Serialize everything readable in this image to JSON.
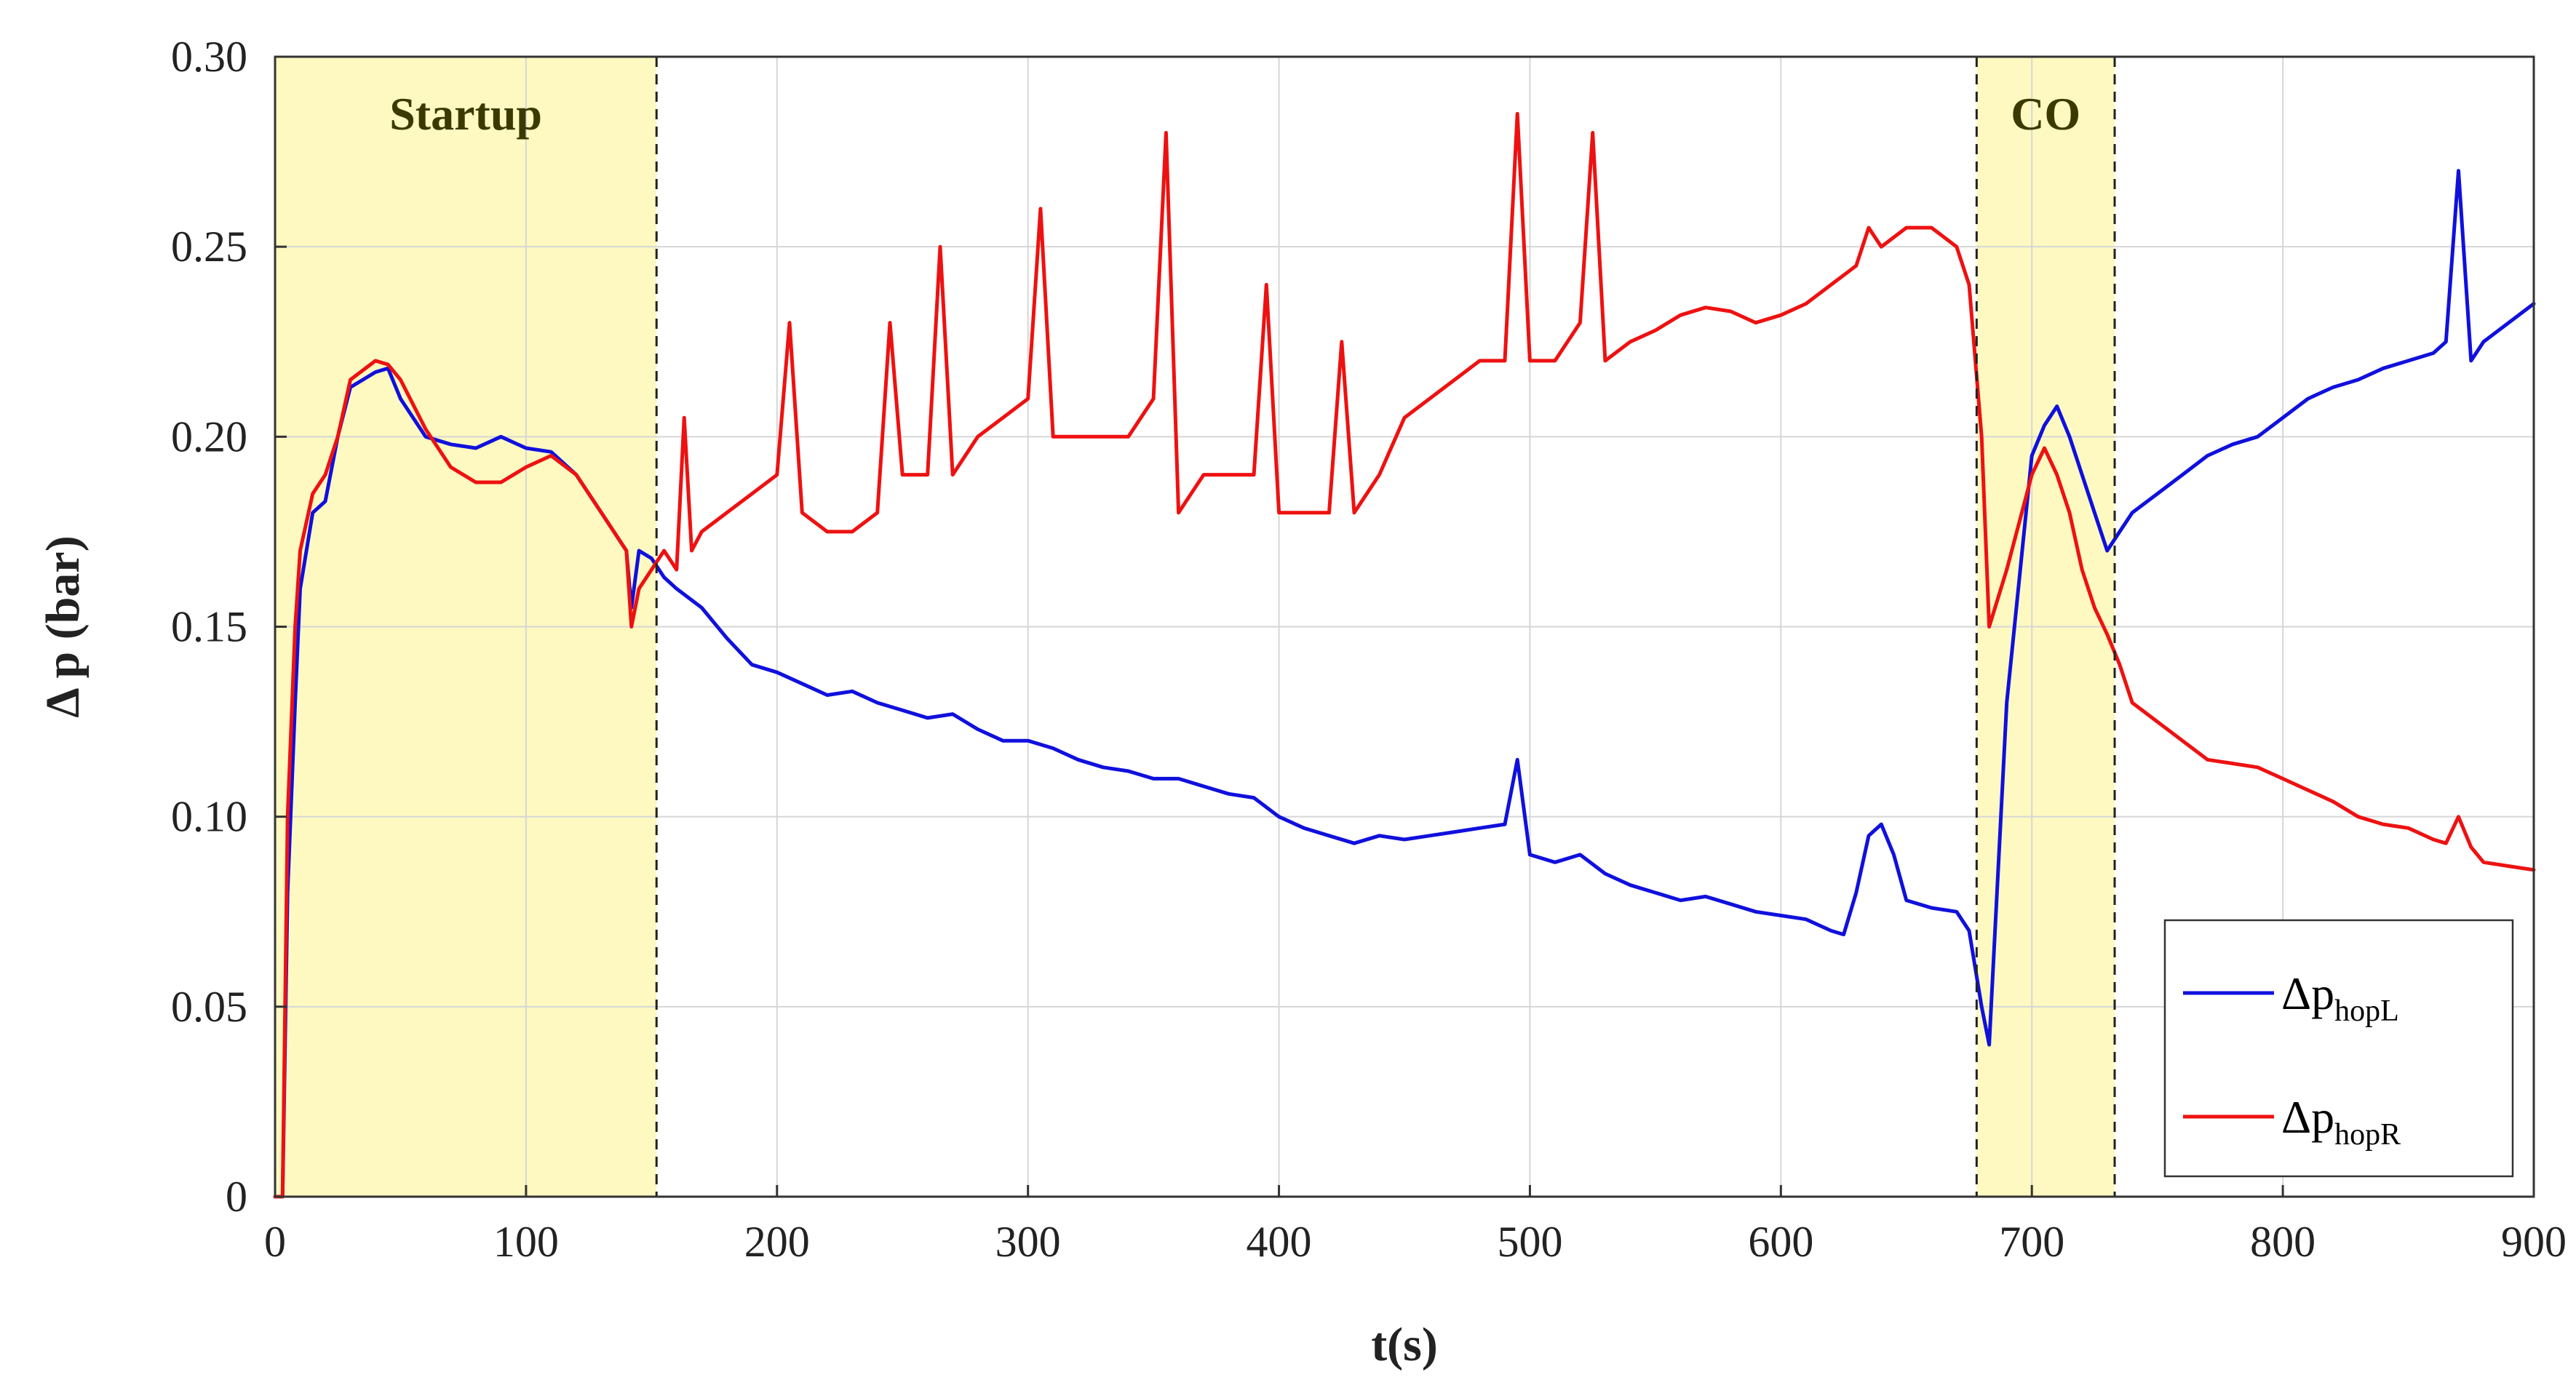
{
  "chart_data": {
    "type": "line",
    "xlabel": "t(s)",
    "ylabel": "Δ p (bar)",
    "xlim": [
      0,
      900
    ],
    "ylim": [
      0,
      0.3
    ],
    "xticks": [
      0,
      100,
      200,
      300,
      400,
      500,
      600,
      700,
      800,
      900
    ],
    "xtick_labels": [
      "0",
      "100",
      "200",
      "300",
      "400",
      "500",
      "600",
      "700",
      "800",
      "900"
    ],
    "yticks": [
      0,
      0.05,
      0.1,
      0.15,
      0.2,
      0.25,
      0.3
    ],
    "ytick_labels": [
      "0",
      "0.05",
      "0.10",
      "0.15",
      "0.20",
      "0.25",
      "0.30"
    ],
    "grid": true,
    "legend_position": "bottom-right",
    "regions": [
      {
        "label": "Startup",
        "x_start": 0,
        "x_end": 152,
        "color": "#fdf9c0"
      },
      {
        "label": "CO",
        "x_start": 678,
        "x_end": 733,
        "color": "#fdf9c0"
      }
    ],
    "series": [
      {
        "name": "ΔphopL",
        "legend_symbol": "Δp",
        "legend_subscript": "hopL",
        "color": "#1010dd",
        "x": [
          0,
          3,
          5,
          8,
          10,
          15,
          20,
          25,
          30,
          40,
          45,
          50,
          60,
          70,
          80,
          90,
          100,
          110,
          120,
          130,
          140,
          142,
          145,
          150,
          155,
          160,
          170,
          180,
          190,
          200,
          210,
          220,
          230,
          240,
          250,
          260,
          270,
          280,
          290,
          300,
          310,
          320,
          330,
          340,
          350,
          360,
          370,
          380,
          390,
          400,
          410,
          420,
          430,
          440,
          450,
          460,
          470,
          480,
          490,
          495,
          500,
          510,
          520,
          530,
          540,
          550,
          560,
          570,
          580,
          590,
          600,
          610,
          620,
          625,
          630,
          635,
          640,
          645,
          650,
          660,
          670,
          675,
          680,
          683,
          690,
          700,
          705,
          710,
          715,
          720,
          725,
          730,
          735,
          740,
          750,
          760,
          770,
          780,
          790,
          800,
          810,
          820,
          830,
          840,
          850,
          860,
          865,
          870,
          875,
          880,
          890,
          900
        ],
        "y": [
          0,
          0,
          0.08,
          0.13,
          0.16,
          0.18,
          0.183,
          0.2,
          0.213,
          0.217,
          0.218,
          0.21,
          0.2,
          0.198,
          0.197,
          0.2,
          0.197,
          0.196,
          0.19,
          0.18,
          0.17,
          0.155,
          0.17,
          0.168,
          0.163,
          0.16,
          0.155,
          0.147,
          0.14,
          0.138,
          0.135,
          0.132,
          0.133,
          0.13,
          0.128,
          0.126,
          0.127,
          0.123,
          0.12,
          0.12,
          0.118,
          0.115,
          0.113,
          0.112,
          0.11,
          0.11,
          0.108,
          0.106,
          0.105,
          0.1,
          0.097,
          0.095,
          0.093,
          0.095,
          0.094,
          0.095,
          0.096,
          0.097,
          0.098,
          0.115,
          0.09,
          0.088,
          0.09,
          0.085,
          0.082,
          0.08,
          0.078,
          0.079,
          0.077,
          0.075,
          0.074,
          0.073,
          0.07,
          0.069,
          0.08,
          0.095,
          0.098,
          0.09,
          0.078,
          0.076,
          0.075,
          0.07,
          0.05,
          0.04,
          0.13,
          0.195,
          0.203,
          0.208,
          0.2,
          0.19,
          0.18,
          0.17,
          0.175,
          0.18,
          0.185,
          0.19,
          0.195,
          0.198,
          0.2,
          0.205,
          0.21,
          0.213,
          0.215,
          0.218,
          0.22,
          0.222,
          0.225,
          0.27,
          0.22,
          0.225,
          0.23,
          0.235
        ]
      },
      {
        "name": "ΔphopR",
        "legend_symbol": "Δp",
        "legend_subscript": "hopR",
        "color": "#ee1111",
        "x": [
          0,
          3,
          5,
          8,
          10,
          15,
          20,
          25,
          30,
          40,
          45,
          50,
          60,
          70,
          80,
          90,
          100,
          110,
          120,
          130,
          140,
          142,
          145,
          150,
          155,
          160,
          163,
          166,
          170,
          180,
          190,
          200,
          205,
          210,
          220,
          230,
          240,
          245,
          250,
          260,
          265,
          270,
          280,
          290,
          300,
          305,
          310,
          320,
          330,
          340,
          350,
          355,
          360,
          370,
          380,
          390,
          395,
          400,
          410,
          420,
          425,
          430,
          440,
          450,
          460,
          470,
          480,
          490,
          495,
          500,
          510,
          520,
          525,
          530,
          540,
          550,
          560,
          570,
          580,
          590,
          600,
          610,
          620,
          630,
          635,
          640,
          650,
          660,
          670,
          675,
          680,
          683,
          690,
          700,
          705,
          710,
          715,
          720,
          725,
          730,
          735,
          740,
          750,
          760,
          770,
          780,
          790,
          800,
          810,
          820,
          830,
          840,
          850,
          860,
          865,
          870,
          875,
          880,
          890,
          900
        ],
        "y": [
          0,
          0,
          0.1,
          0.15,
          0.17,
          0.185,
          0.19,
          0.2,
          0.215,
          0.22,
          0.219,
          0.215,
          0.202,
          0.192,
          0.188,
          0.188,
          0.192,
          0.195,
          0.19,
          0.18,
          0.17,
          0.15,
          0.16,
          0.165,
          0.17,
          0.165,
          0.205,
          0.17,
          0.175,
          0.18,
          0.185,
          0.19,
          0.23,
          0.18,
          0.175,
          0.175,
          0.18,
          0.23,
          0.19,
          0.19,
          0.25,
          0.19,
          0.2,
          0.205,
          0.21,
          0.26,
          0.2,
          0.2,
          0.2,
          0.2,
          0.21,
          0.28,
          0.18,
          0.19,
          0.19,
          0.19,
          0.24,
          0.18,
          0.18,
          0.18,
          0.225,
          0.18,
          0.19,
          0.205,
          0.21,
          0.215,
          0.22,
          0.22,
          0.285,
          0.22,
          0.22,
          0.23,
          0.28,
          0.22,
          0.225,
          0.228,
          0.232,
          0.234,
          0.233,
          0.23,
          0.232,
          0.235,
          0.24,
          0.245,
          0.255,
          0.25,
          0.255,
          0.255,
          0.25,
          0.24,
          0.2,
          0.15,
          0.165,
          0.19,
          0.197,
          0.19,
          0.18,
          0.165,
          0.155,
          0.148,
          0.14,
          0.13,
          0.125,
          0.12,
          0.115,
          0.114,
          0.113,
          0.11,
          0.107,
          0.104,
          0.1,
          0.098,
          0.097,
          0.094,
          0.093,
          0.1,
          0.092,
          0.088,
          0.087,
          0.086
        ]
      }
    ]
  }
}
